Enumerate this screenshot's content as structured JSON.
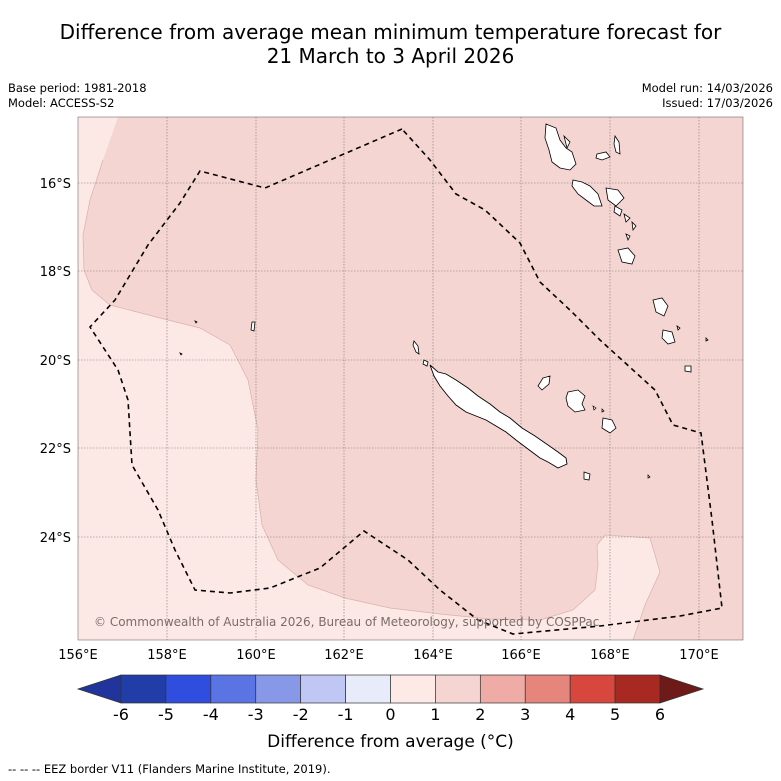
{
  "title": {
    "line1": "Difference from average mean minimum temperature forecast for",
    "line2": "21 March to 3 April 2026"
  },
  "meta": {
    "base_period": "Base period: 1981-2018",
    "model": "Model: ACCESS-S2",
    "model_run": "Model run: 14/03/2026",
    "issued": "Issued: 17/03/2026"
  },
  "map": {
    "extent": {
      "lon_min": 156,
      "lon_max": 171,
      "lat_min": -26.0,
      "lat_max": -14.5
    },
    "lat_labels": [
      "16°S",
      "18°S",
      "20°S",
      "22°S",
      "24°S"
    ],
    "lon_labels": [
      "156°E",
      "158°E",
      "160°E",
      "162°E",
      "164°E",
      "166°E",
      "168°E",
      "170°E"
    ],
    "copyright": "© Commonwealth of Australia 2026, Bureau of Meteorology, supported by COSPPac",
    "colors": {
      "anomaly_0_1": "#fce9e6",
      "anomaly_1_2": "#f5d5d1",
      "land": "#ffffff"
    }
  },
  "colorbar": {
    "ticks": [
      "-6",
      "-5",
      "-4",
      "-3",
      "-2",
      "-1",
      "0",
      "1",
      "2",
      "3",
      "4",
      "5",
      "6"
    ],
    "colors": [
      "#20349b",
      "#213da8",
      "#2f4ee0",
      "#5b74e4",
      "#8798e8",
      "#c0c7f4",
      "#e8ebfa",
      "#fdeae6",
      "#f5d5d1",
      "#efaca6",
      "#e6857c",
      "#d8473d",
      "#a82822",
      "#6e1a18"
    ],
    "label": "Difference from average (°C)"
  },
  "legend": {
    "eez": "--  --  -- EEZ border V11 (Flanders Marine Institute, 2019)."
  }
}
